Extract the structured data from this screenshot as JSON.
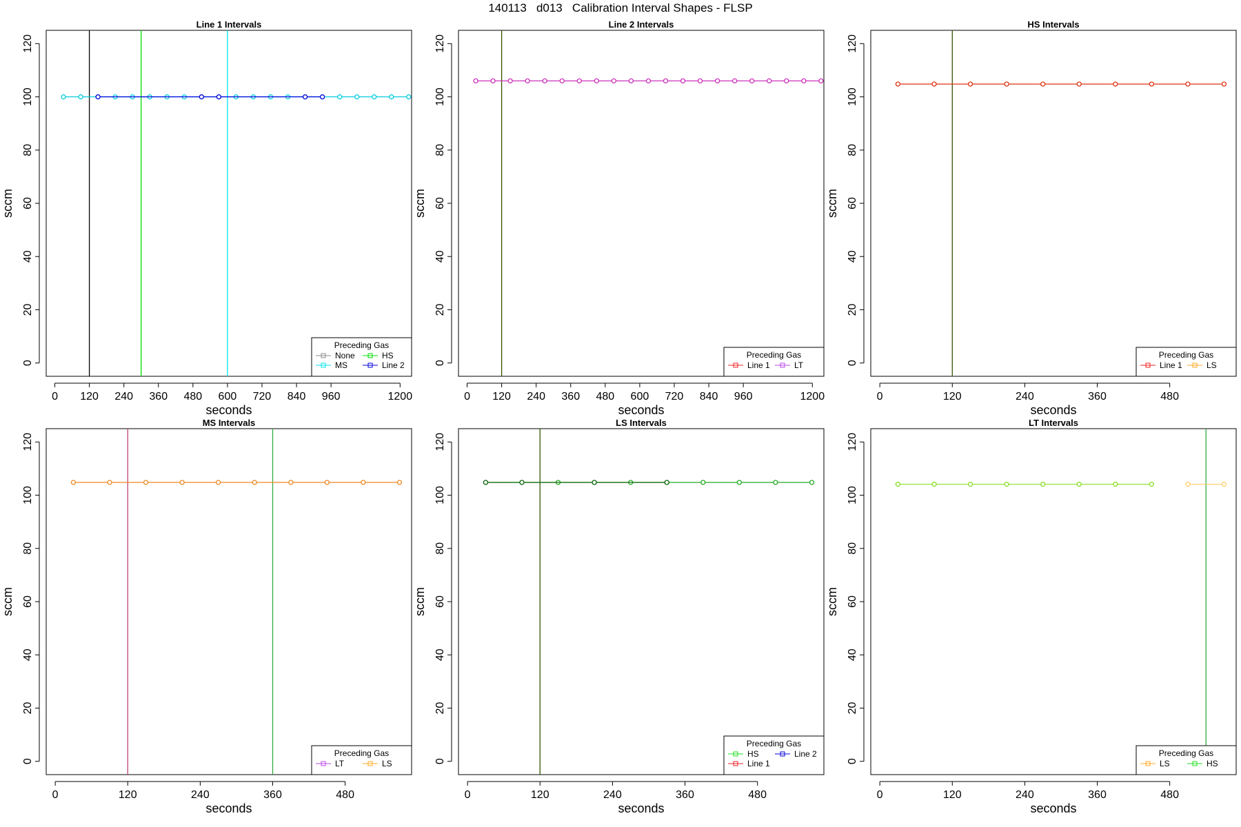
{
  "figure": {
    "title": "140113   d013   Calibration Interval Shapes - FLSP"
  },
  "chart_data": [
    {
      "type": "line",
      "title": "Line 1 Intervals",
      "xlabel": "seconds",
      "ylabel": "sccm",
      "xlim": [
        -30,
        1240
      ],
      "ylim": [
        -5,
        125
      ],
      "xticks": [
        0,
        120,
        240,
        360,
        480,
        600,
        720,
        840,
        960,
        1200
      ],
      "yticks": [
        0,
        20,
        40,
        60,
        80,
        100,
        120
      ],
      "vlines": [
        {
          "x": 120,
          "color": "#000000"
        },
        {
          "x": 300,
          "color": "#00dd00"
        },
        {
          "x": 600,
          "color": "#00e5ee"
        }
      ],
      "legend": {
        "title": "Preceding Gas",
        "position": "bottom-right",
        "entries": [
          {
            "label": "None",
            "color": "#888888"
          },
          {
            "label": "HS",
            "color": "#00dd00"
          },
          {
            "label": "MS",
            "color": "#00e5ee"
          },
          {
            "label": "Line 2",
            "color": "#0000dd"
          }
        ]
      },
      "series": [
        {
          "color": "#00ccdd",
          "x": [
            30,
            90,
            150,
            210,
            270,
            330,
            390,
            450,
            510,
            570,
            630,
            690,
            750,
            810,
            870,
            930,
            990,
            1050,
            1110,
            1170,
            1230
          ],
          "y": [
            100,
            100,
            100,
            100,
            100,
            100,
            100,
            100,
            100,
            100,
            100,
            100,
            100,
            100,
            100,
            100,
            100,
            100,
            100,
            100,
            100
          ]
        },
        {
          "color": "#0000dd",
          "x": [
            150,
            510,
            570,
            870,
            930
          ],
          "y": [
            100,
            100,
            100,
            100,
            100
          ]
        }
      ]
    },
    {
      "type": "line",
      "title": "Line 2 Intervals",
      "xlabel": "seconds",
      "ylabel": "sccm",
      "xlim": [
        -30,
        1240
      ],
      "ylim": [
        -5,
        125
      ],
      "xticks": [
        0,
        120,
        240,
        360,
        480,
        600,
        720,
        840,
        960,
        1200
      ],
      "yticks": [
        0,
        20,
        40,
        60,
        80,
        100,
        120
      ],
      "vlines": [
        {
          "x": 120,
          "color": "#335500"
        }
      ],
      "legend": {
        "title": "Preceding Gas",
        "position": "bottom-right",
        "entries": [
          {
            "label": "Line 1",
            "color": "#ee2222"
          },
          {
            "label": "LT",
            "color": "#bb44ee"
          }
        ]
      },
      "series": [
        {
          "color": "#cc33bb",
          "x": [
            30,
            90,
            150,
            210,
            270,
            330,
            390,
            450,
            510,
            570,
            630,
            690,
            750,
            810,
            870,
            930,
            990,
            1050,
            1110,
            1170,
            1230
          ],
          "y": [
            106,
            106,
            106,
            106,
            106,
            106,
            106,
            106,
            106,
            106,
            106,
            106,
            106,
            106,
            106,
            106,
            106,
            106,
            106,
            106,
            106
          ]
        }
      ]
    },
    {
      "type": "line",
      "title": "HS Intervals",
      "xlabel": "seconds",
      "ylabel": "sccm",
      "xlim": [
        -15,
        590
      ],
      "ylim": [
        -5,
        125
      ],
      "xticks": [
        0,
        120,
        240,
        360,
        480
      ],
      "yticks": [
        0,
        20,
        40,
        60,
        80,
        100,
        120
      ],
      "vlines": [
        {
          "x": 120,
          "color": "#335500"
        }
      ],
      "legend": {
        "title": "Preceding Gas",
        "position": "bottom-right",
        "entries": [
          {
            "label": "Line 1",
            "color": "#ee2222"
          },
          {
            "label": "LS",
            "color": "#ffaa22"
          }
        ]
      },
      "series": [
        {
          "color": "#dd3311",
          "x": [
            30,
            90,
            150,
            210,
            270,
            330,
            390,
            450,
            510,
            570
          ],
          "y": [
            104.8,
            104.8,
            104.8,
            104.8,
            104.8,
            104.8,
            104.8,
            104.8,
            104.8,
            104.8
          ]
        }
      ]
    },
    {
      "type": "line",
      "title": "MS Intervals",
      "xlabel": "seconds",
      "ylabel": "sccm",
      "xlim": [
        -15,
        590
      ],
      "ylim": [
        -5,
        125
      ],
      "xticks": [
        0,
        120,
        240,
        360,
        480
      ],
      "yticks": [
        0,
        20,
        40,
        60,
        80,
        100,
        120
      ],
      "vlines": [
        {
          "x": 120,
          "color": "#bb4477"
        },
        {
          "x": 360,
          "color": "#33aa44"
        }
      ],
      "legend": {
        "title": "Preceding Gas",
        "position": "bottom-right",
        "entries": [
          {
            "label": "LT",
            "color": "#bb44ee"
          },
          {
            "label": "LS",
            "color": "#ffaa22"
          }
        ]
      },
      "series": [
        {
          "color": "#ee8822",
          "x": [
            30,
            90,
            150,
            210,
            270,
            330,
            390,
            450,
            510,
            570
          ],
          "y": [
            104.8,
            104.8,
            104.8,
            104.8,
            104.8,
            104.8,
            104.8,
            104.8,
            104.8,
            104.8
          ]
        }
      ]
    },
    {
      "type": "line",
      "title": "LS Intervals",
      "xlabel": "seconds",
      "ylabel": "sccm",
      "xlim": [
        -15,
        590
      ],
      "ylim": [
        -5,
        125
      ],
      "xticks": [
        0,
        120,
        240,
        360,
        480
      ],
      "yticks": [
        0,
        20,
        40,
        60,
        80,
        100,
        120
      ],
      "vlines": [
        {
          "x": 120,
          "color": "#335500"
        }
      ],
      "legend": {
        "title": "Preceding Gas",
        "position": "bottom-right",
        "entries": [
          {
            "label": "HS",
            "color": "#22dd22"
          },
          {
            "label": "Line 2",
            "color": "#0000dd"
          },
          {
            "label": "Line 1",
            "color": "#ee2222"
          }
        ]
      },
      "series": [
        {
          "color": "#22aa22",
          "x": [
            30,
            90,
            150,
            210,
            270,
            330,
            390,
            450,
            510,
            570
          ],
          "y": [
            104.8,
            104.8,
            104.8,
            104.8,
            104.8,
            104.8,
            104.8,
            104.8,
            104.8,
            104.8
          ]
        },
        {
          "color": "#116611",
          "x": [
            30,
            90,
            210,
            330
          ],
          "y": [
            104.8,
            104.8,
            104.8,
            104.8
          ]
        }
      ]
    },
    {
      "type": "line",
      "title": "LT Intervals",
      "xlabel": "seconds",
      "ylabel": "sccm",
      "xlim": [
        -15,
        590
      ],
      "ylim": [
        -5,
        125
      ],
      "xticks": [
        0,
        120,
        240,
        360,
        480
      ],
      "yticks": [
        0,
        20,
        40,
        60,
        80,
        100,
        120
      ],
      "vlines": [
        {
          "x": 540,
          "color": "#33aa44"
        }
      ],
      "legend": {
        "title": "Preceding Gas",
        "position": "bottom-right",
        "entries": [
          {
            "label": "LS",
            "color": "#ffaa22"
          },
          {
            "label": "HS",
            "color": "#22dd22"
          }
        ]
      },
      "series": [
        {
          "color": "#88dd22",
          "x": [
            30,
            90,
            150,
            210,
            270,
            330,
            390,
            450
          ],
          "y": [
            104.1,
            104.1,
            104.1,
            104.1,
            104.1,
            104.1,
            104.1,
            104.1
          ]
        },
        {
          "color": "#ffcc66",
          "x": [
            510,
            570
          ],
          "y": [
            104.1,
            104.1
          ]
        }
      ]
    }
  ]
}
